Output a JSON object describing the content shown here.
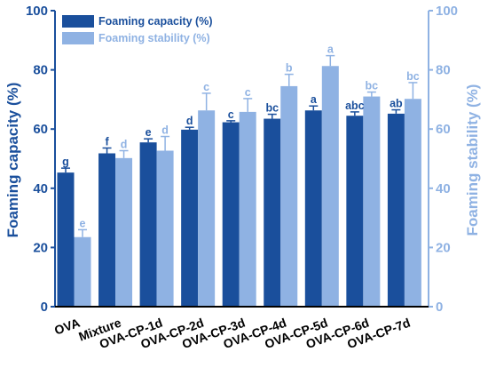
{
  "chart_data": {
    "type": "bar",
    "categories": [
      "OVA",
      "Mixture",
      "OVA-CP-1d",
      "OVA-CP-2d",
      "OVA-CP-3d",
      "OVA-CP-4d",
      "OVA-CP-5d",
      "OVA-CP-6d",
      "OVA-CP-7d"
    ],
    "series": [
      {
        "name": "Foaming capacity (%)",
        "axis": "left",
        "color": "#1a4f9c",
        "values": [
          45.3,
          51.8,
          55.5,
          59.8,
          62.3,
          63.5,
          66.3,
          64.5,
          65.2
        ],
        "errors": [
          1.5,
          1.8,
          1.2,
          0.8,
          0.5,
          1.5,
          1.5,
          1.3,
          1.3
        ],
        "labels": [
          "g",
          "f",
          "e",
          "d",
          "c",
          "bc",
          "a",
          "abc",
          "ab"
        ]
      },
      {
        "name": "Foaming stability (%)",
        "axis": "right",
        "color": "#8fb2e3",
        "values": [
          23.5,
          50.2,
          52.7,
          66.3,
          65.8,
          74.5,
          81.3,
          71.0,
          70.2
        ],
        "errors": [
          2.5,
          2.5,
          4.8,
          5.8,
          4.5,
          4.0,
          3.5,
          1.5,
          5.5
        ],
        "labels": [
          "e",
          "d",
          "d",
          "c",
          "c",
          "b",
          "a",
          "bc",
          "bc"
        ]
      }
    ],
    "ylabel_left": "Foaming capacity (%)",
    "ylabel_right": "Foaming stability (%)",
    "ylim": [
      0,
      100
    ],
    "yticks": [
      "0",
      "20",
      "40",
      "60",
      "80",
      "100"
    ],
    "legend_position": "top-left",
    "grid": false,
    "colors": {
      "left_axis": "#1a4f9c",
      "right_axis": "#8fb2e3"
    }
  }
}
